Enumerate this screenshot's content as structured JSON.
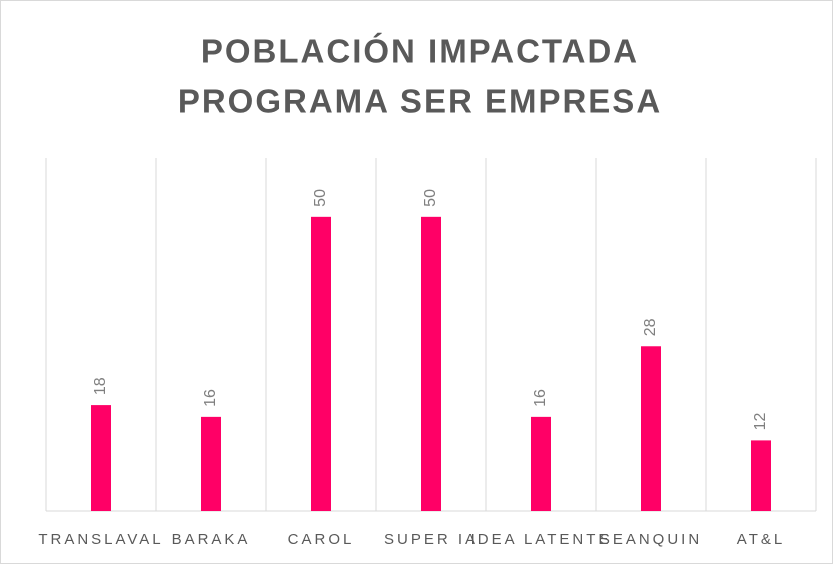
{
  "chart_data": {
    "type": "bar",
    "title_lines": [
      "POBLACIÓN IMPACTADA",
      "PROGRAMA SER EMPRESA"
    ],
    "categories": [
      "TRANSLAVAL",
      "BARAKA",
      "CAROL",
      "SUPER IA",
      "IDEA LATENTE",
      "SEANQUIN",
      "AT&L"
    ],
    "values": [
      18,
      16,
      50,
      50,
      16,
      28,
      12
    ],
    "color": "#ff0066",
    "ylim": [
      0,
      60
    ]
  }
}
